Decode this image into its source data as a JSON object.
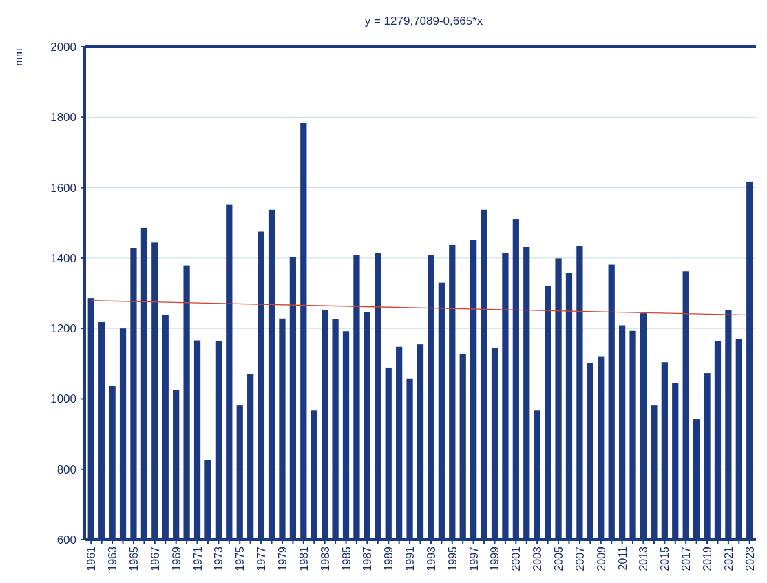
{
  "chart_data": {
    "type": "bar",
    "title": "y = 1279,7089-0,665*x",
    "ylabel": "mm",
    "categories": [
      "1961",
      null,
      "1963",
      null,
      "1965",
      null,
      "1967",
      null,
      "1969",
      null,
      "1971",
      null,
      "1973",
      null,
      "1975",
      null,
      "1977",
      null,
      "1979",
      null,
      "1981",
      null,
      "1983",
      null,
      "1985",
      null,
      "1987",
      null,
      "1989",
      null,
      "1991",
      null,
      "1993",
      null,
      "1995",
      null,
      "1997",
      null,
      "1999",
      null,
      "2001",
      null,
      "2003",
      null,
      "2005",
      null,
      "2007",
      null,
      "2009",
      null,
      "2011",
      null,
      "2013",
      null,
      "2015",
      null,
      "2017",
      null,
      "2019",
      null,
      "2021",
      null,
      "2023"
    ],
    "series": [
      {
        "color": "#1b3a82",
        "values": [
          1286,
          1218,
          1036,
          1200,
          1429,
          1486,
          1444,
          1238,
          1025,
          1379,
          1166,
          825,
          1164,
          1551,
          981,
          1070,
          1475,
          1537,
          1228,
          1403,
          1785,
          967,
          1252,
          1227,
          1192,
          1408,
          1246,
          1414,
          1089,
          1148,
          1058,
          1155,
          1408,
          1330,
          1437,
          1128,
          1452,
          1537,
          1145,
          1414,
          1511,
          1431,
          967,
          1321,
          1399,
          1358,
          1433,
          1101,
          1121,
          1381,
          1209,
          1193,
          1243,
          981,
          1104,
          1044,
          1362,
          942,
          1073,
          1164,
          1252,
          1170,
          1617
        ]
      },
      {
        "type": "line",
        "color": "#d0452e",
        "values": [
          1279,
          null,
          null,
          null,
          null,
          null,
          null,
          null,
          null,
          null,
          null,
          null,
          null,
          null,
          null,
          null,
          null,
          null,
          null,
          null,
          null,
          null,
          null,
          null,
          null,
          null,
          null,
          null,
          null,
          null,
          null,
          null,
          null,
          null,
          null,
          null,
          null,
          null,
          null,
          null,
          null,
          null,
          null,
          null,
          null,
          null,
          null,
          null,
          null,
          null,
          null,
          null,
          null,
          null,
          null,
          null,
          null,
          null,
          null,
          null,
          null,
          null,
          1238
        ]
      }
    ],
    "ylim": [
      600,
      2000
    ],
    "yticks": [
      600,
      800,
      1000,
      1200,
      1400,
      1600,
      1800,
      2000
    ],
    "grid": "y"
  }
}
